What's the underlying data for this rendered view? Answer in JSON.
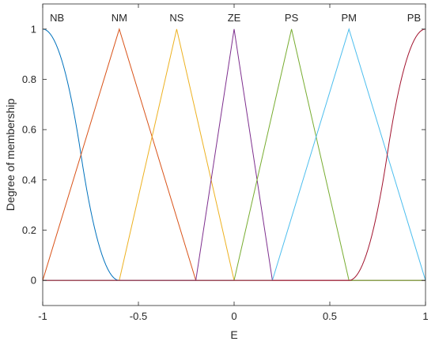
{
  "chart_data": {
    "type": "line",
    "title": "",
    "xlabel": "E",
    "ylabel": "Degree of membership",
    "xlim": [
      -1,
      1
    ],
    "ylim": [
      -0.1,
      1.1
    ],
    "xticks": [
      -1,
      -0.5,
      0,
      0.5,
      1
    ],
    "xtick_labels": [
      "-1",
      "-0.5",
      "0",
      "0.5",
      "1"
    ],
    "yticks": [
      0,
      0.2,
      0.4,
      0.6,
      0.8,
      1
    ],
    "ytick_labels": [
      "0",
      "0.2",
      "0.4",
      "0.6",
      "0.8",
      "1"
    ],
    "grid": false,
    "legend": "none",
    "series": [
      {
        "name": "NB",
        "shape": "z-shaped",
        "params": [
          -1,
          -0.6
        ],
        "color": "#0072BD",
        "x": [
          -1,
          -0.95,
          -0.9,
          -0.85,
          -0.8,
          -0.75,
          -0.7,
          -0.65,
          -0.6,
          1
        ],
        "y": [
          1,
          0.969,
          0.875,
          0.719,
          0.5,
          0.281,
          0.125,
          0.031,
          0,
          0
        ]
      },
      {
        "name": "NM",
        "shape": "triangular",
        "params": [
          -1,
          -0.6,
          -0.2
        ],
        "color": "#D95319",
        "x": [
          -1,
          -0.6,
          -0.2,
          1
        ],
        "y": [
          0,
          1,
          0,
          0
        ]
      },
      {
        "name": "NS",
        "shape": "triangular",
        "params": [
          -0.6,
          -0.3,
          0
        ],
        "color": "#EDB120",
        "x": [
          -1,
          -0.6,
          -0.3,
          0,
          1
        ],
        "y": [
          0,
          0,
          1,
          0,
          0
        ]
      },
      {
        "name": "ZE",
        "shape": "triangular",
        "params": [
          -0.2,
          0,
          0.2
        ],
        "color": "#7E2F8E",
        "x": [
          -1,
          -0.2,
          0,
          0.2,
          1
        ],
        "y": [
          0,
          0,
          1,
          0,
          0
        ]
      },
      {
        "name": "PS",
        "shape": "triangular",
        "params": [
          0,
          0.3,
          0.6
        ],
        "color": "#77AC30",
        "x": [
          -1,
          0,
          0.3,
          0.6,
          1
        ],
        "y": [
          0,
          0,
          1,
          0,
          0
        ]
      },
      {
        "name": "PM",
        "shape": "triangular",
        "params": [
          0.2,
          0.6,
          1
        ],
        "color": "#4DBEEE",
        "x": [
          -1,
          0.2,
          0.6,
          1
        ],
        "y": [
          0,
          0,
          1,
          0
        ]
      },
      {
        "name": "PB",
        "shape": "s-shaped",
        "params": [
          0.6,
          1
        ],
        "color": "#A2142F",
        "x": [
          -1,
          0.6,
          0.65,
          0.7,
          0.75,
          0.8,
          0.85,
          0.9,
          0.95,
          1
        ],
        "y": [
          0,
          0,
          0.031,
          0.125,
          0.281,
          0.5,
          0.719,
          0.875,
          0.969,
          1
        ]
      }
    ],
    "mf_labels": [
      {
        "text": "NB",
        "x": -0.925
      },
      {
        "text": "NM",
        "x": -0.6
      },
      {
        "text": "NS",
        "x": -0.3
      },
      {
        "text": "ZE",
        "x": 0
      },
      {
        "text": "PS",
        "x": 0.3
      },
      {
        "text": "PM",
        "x": 0.6
      },
      {
        "text": "PB",
        "x": 0.94
      }
    ]
  }
}
